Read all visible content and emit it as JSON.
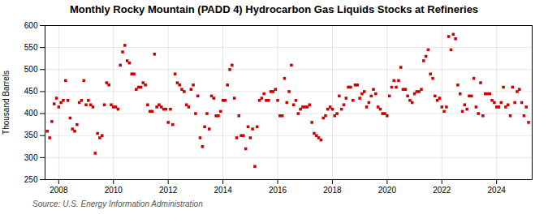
{
  "chart_data": {
    "type": "scatter",
    "title": "Monthly Rocky Mountain (PADD 4) Hydrocarbon Gas Liquids Stocks at Refineries",
    "ylabel": "Thousand Barrels",
    "annotations": [
      "Source: U.S. Energy Information Administration"
    ],
    "color": "#cc0000",
    "marker": "square",
    "grid": true,
    "xlim": [
      2007.5,
      2025.3
    ],
    "xticks": [
      2008,
      2010,
      2012,
      2014,
      2016,
      2018,
      2020,
      2022,
      2024
    ],
    "ylim": [
      250,
      600
    ],
    "yticks": [
      250,
      300,
      350,
      400,
      450,
      500,
      550,
      600
    ],
    "x": [
      2007.583,
      2007.667,
      2007.75,
      2007.833,
      2007.917,
      2008.0,
      2008.083,
      2008.167,
      2008.25,
      2008.333,
      2008.417,
      2008.5,
      2008.583,
      2008.667,
      2008.75,
      2008.833,
      2008.917,
      2009.0,
      2009.083,
      2009.167,
      2009.25,
      2009.333,
      2009.417,
      2009.5,
      2009.583,
      2009.667,
      2009.75,
      2009.833,
      2009.917,
      2010.0,
      2010.083,
      2010.167,
      2010.25,
      2010.333,
      2010.417,
      2010.5,
      2010.583,
      2010.667,
      2010.75,
      2010.833,
      2010.917,
      2011.0,
      2011.083,
      2011.167,
      2011.25,
      2011.333,
      2011.417,
      2011.5,
      2011.583,
      2011.667,
      2011.75,
      2011.833,
      2011.917,
      2012.0,
      2012.083,
      2012.167,
      2012.25,
      2012.333,
      2012.417,
      2012.5,
      2012.583,
      2012.667,
      2012.75,
      2012.833,
      2012.917,
      2013.0,
      2013.083,
      2013.167,
      2013.25,
      2013.333,
      2013.417,
      2013.5,
      2013.583,
      2013.667,
      2013.75,
      2013.833,
      2013.917,
      2014.0,
      2014.083,
      2014.167,
      2014.25,
      2014.333,
      2014.417,
      2014.5,
      2014.583,
      2014.667,
      2014.75,
      2014.833,
      2014.917,
      2015.0,
      2015.083,
      2015.167,
      2015.25,
      2015.333,
      2015.417,
      2015.5,
      2015.583,
      2015.667,
      2015.75,
      2015.833,
      2015.917,
      2016.0,
      2016.083,
      2016.167,
      2016.25,
      2016.333,
      2016.417,
      2016.5,
      2016.583,
      2016.667,
      2016.75,
      2016.833,
      2016.917,
      2017.0,
      2017.083,
      2017.167,
      2017.25,
      2017.333,
      2017.417,
      2017.5,
      2017.583,
      2017.667,
      2017.75,
      2017.833,
      2017.917,
      2018.0,
      2018.083,
      2018.167,
      2018.25,
      2018.333,
      2018.417,
      2018.5,
      2018.583,
      2018.667,
      2018.75,
      2018.833,
      2018.917,
      2019.0,
      2019.083,
      2019.167,
      2019.25,
      2019.333,
      2019.417,
      2019.5,
      2019.583,
      2019.667,
      2019.75,
      2019.833,
      2019.917,
      2020.0,
      2020.083,
      2020.167,
      2020.25,
      2020.333,
      2020.417,
      2020.5,
      2020.583,
      2020.667,
      2020.75,
      2020.833,
      2020.917,
      2021.0,
      2021.083,
      2021.167,
      2021.25,
      2021.333,
      2021.417,
      2021.5,
      2021.583,
      2021.667,
      2021.75,
      2021.833,
      2021.917,
      2022.0,
      2022.083,
      2022.167,
      2022.25,
      2022.333,
      2022.417,
      2022.5,
      2022.583,
      2022.667,
      2022.75,
      2022.833,
      2022.917,
      2023.0,
      2023.083,
      2023.167,
      2023.25,
      2023.333,
      2023.417,
      2023.5,
      2023.583,
      2023.667,
      2023.75,
      2023.833,
      2023.917,
      2024.0,
      2024.083,
      2024.167,
      2024.25,
      2024.333,
      2024.417,
      2024.5,
      2024.583,
      2024.667,
      2024.75,
      2024.833,
      2024.917,
      2025.0,
      2025.083,
      2025.167
    ],
    "values": [
      360,
      345,
      382,
      422,
      435,
      415,
      425,
      430,
      475,
      430,
      390,
      365,
      360,
      375,
      425,
      430,
      475,
      420,
      430,
      420,
      415,
      310,
      355,
      345,
      350,
      420,
      470,
      465,
      420,
      415,
      415,
      410,
      510,
      540,
      555,
      520,
      515,
      490,
      490,
      455,
      460,
      460,
      470,
      465,
      420,
      405,
      405,
      535,
      415,
      420,
      415,
      410,
      410,
      380,
      410,
      375,
      490,
      470,
      465,
      455,
      450,
      420,
      415,
      455,
      465,
      400,
      440,
      345,
      325,
      370,
      400,
      365,
      440,
      435,
      395,
      395,
      405,
      430,
      430,
      465,
      500,
      510,
      435,
      345,
      395,
      350,
      350,
      320,
      370,
      345,
      365,
      280,
      370,
      430,
      435,
      445,
      430,
      430,
      450,
      450,
      455,
      430,
      395,
      395,
      480,
      425,
      450,
      510,
      420,
      430,
      400,
      410,
      415,
      415,
      415,
      420,
      380,
      355,
      350,
      345,
      340,
      390,
      395,
      410,
      415,
      410,
      395,
      400,
      440,
      410,
      420,
      435,
      460,
      460,
      430,
      465,
      465,
      435,
      445,
      450,
      415,
      425,
      440,
      455,
      445,
      415,
      410,
      400,
      400,
      395,
      440,
      460,
      475,
      460,
      475,
      505,
      455,
      455,
      440,
      430,
      425,
      445,
      450,
      450,
      455,
      520,
      530,
      545,
      490,
      480,
      440,
      430,
      435,
      415,
      405,
      415,
      575,
      545,
      580,
      570,
      465,
      445,
      405,
      420,
      410,
      440,
      440,
      480,
      415,
      400,
      470,
      395,
      445,
      445,
      445,
      430,
      425,
      415,
      415,
      425,
      460,
      415,
      420,
      395,
      460,
      425,
      450,
      455,
      425,
      395,
      415,
      380
    ]
  }
}
